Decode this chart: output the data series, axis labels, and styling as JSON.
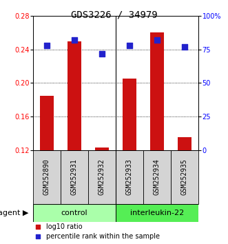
{
  "title": "GDS3226 / 34979",
  "samples": [
    "GSM252890",
    "GSM252931",
    "GSM252932",
    "GSM252933",
    "GSM252934",
    "GSM252935"
  ],
  "log10_ratio": [
    0.185,
    0.25,
    0.123,
    0.205,
    0.26,
    0.135
  ],
  "percentile_rank": [
    78,
    82,
    72,
    78,
    82,
    77
  ],
  "bar_bottom": 0.12,
  "ylim_left": [
    0.12,
    0.28
  ],
  "ylim_right": [
    0,
    100
  ],
  "yticks_left": [
    0.12,
    0.16,
    0.2,
    0.24,
    0.28
  ],
  "yticks_right": [
    0,
    25,
    50,
    75,
    100
  ],
  "ytick_right_labels": [
    "0",
    "25",
    "50",
    "75",
    "100%"
  ],
  "bar_color": "#cc1111",
  "dot_color": "#2222cc",
  "group_control_color": "#aaffaa",
  "group_il22_color": "#55ee55",
  "agent_label": "agent",
  "legend_items": [
    {
      "label": "log10 ratio",
      "color": "#cc1111"
    },
    {
      "label": "percentile rank within the sample",
      "color": "#2222cc"
    }
  ],
  "bar_width": 0.5,
  "dot_size": 30,
  "title_fontsize": 10,
  "tick_label_fontsize": 7,
  "legend_fontsize": 7,
  "group_label_fontsize": 8,
  "agent_fontsize": 8,
  "sample_fontsize": 7
}
